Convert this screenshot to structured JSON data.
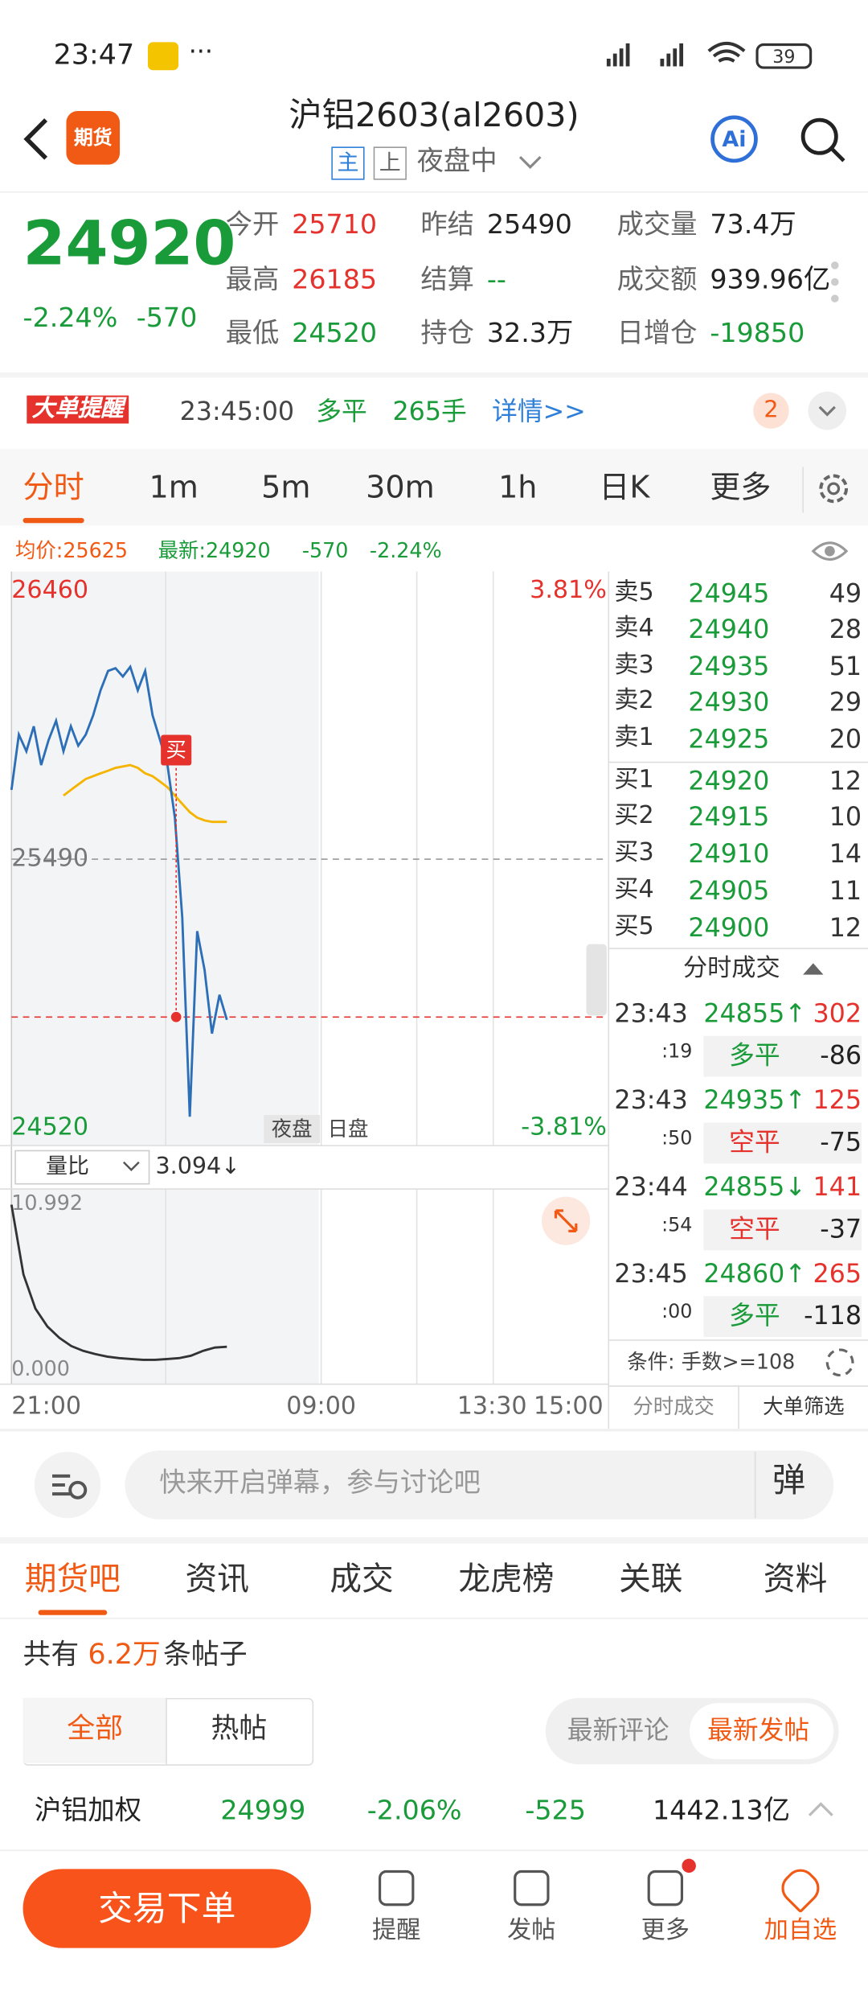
{
  "status_bar": {
    "time": "23:47",
    "battery": "39"
  },
  "header": {
    "logo": "期货",
    "title": "沪铝2603(al2603)",
    "tags": [
      "主",
      "上"
    ],
    "session": "夜盘中"
  },
  "quote": {
    "price": 24920,
    "change_pct": "-2.24%",
    "change": "-570",
    "fields": [
      {
        "label": "今开",
        "value": "25710"
      },
      {
        "label": "昨结",
        "value": "25490"
      },
      {
        "label": "成交量",
        "value": "73.4万"
      },
      {
        "label": "最高",
        "value": "26185"
      },
      {
        "label": "结算",
        "value": "--"
      },
      {
        "label": "成交额",
        "value": "939.96亿"
      },
      {
        "label": "最低",
        "value": "24520"
      },
      {
        "label": "持仓",
        "value": "32.3万"
      },
      {
        "label": "日增仓",
        "value": "-19850"
      }
    ]
  },
  "alert": {
    "badge": "大单提醒",
    "time": "23:45:00",
    "action": "多平",
    "qty": "265手",
    "link": "详情>>",
    "count": "2"
  },
  "tabs": [
    "分时",
    "1m",
    "5m",
    "30m",
    "1h",
    "日K",
    "更多"
  ],
  "info_line": {
    "avg": "均价:25625",
    "latest": "最新:24920",
    "change": "-570",
    "change_pct": "-2.24%"
  },
  "chart": {
    "ylim": [
      24520,
      26460
    ],
    "yticks": [
      24520,
      25490,
      26460
    ],
    "pct_labels": [
      "3.81%",
      "-3.81%"
    ],
    "price_line": [
      25740,
      25940,
      25880,
      25970,
      25830,
      25920,
      25990,
      25880,
      25970,
      25900,
      25940,
      26010,
      26100,
      26170,
      26180,
      26150,
      26185,
      26100,
      26170,
      26010,
      25920,
      25830,
      25640,
      25280,
      24560,
      25230,
      25090,
      24860,
      25000,
      24910
    ],
    "avg_line": [
      null,
      null,
      null,
      null,
      null,
      null,
      null,
      25720,
      25740,
      25760,
      25780,
      25790,
      25800,
      25810,
      25820,
      25825,
      25830,
      25820,
      25800,
      25790,
      25770,
      25750,
      25720,
      25690,
      25660,
      25640,
      25630,
      25625,
      25625,
      25625
    ],
    "marker": "买",
    "session_buttons": [
      "夜盘",
      "日盘"
    ],
    "indicator": "量比",
    "indicator_value": "3.094↓",
    "vol_ylim": [
      0,
      10.992
    ],
    "vol_labels": [
      "10.992",
      "0.000"
    ],
    "vol_line": [
      10.5,
      6.2,
      4.1,
      3.0,
      2.3,
      1.8,
      1.5,
      1.3,
      1.15,
      1.05,
      1.0,
      0.95,
      0.95,
      1.0,
      1.05,
      1.2,
      1.5,
      1.7,
      1.75
    ],
    "x_labels": [
      "21:00",
      "09:00",
      "13:30",
      "15:00"
    ]
  },
  "order_book": {
    "asks": [
      {
        "label": "卖5",
        "price": "24945",
        "vol": "49"
      },
      {
        "label": "卖4",
        "price": "24940",
        "vol": "28"
      },
      {
        "label": "卖3",
        "price": "24935",
        "vol": "51"
      },
      {
        "label": "卖2",
        "price": "24930",
        "vol": "29"
      },
      {
        "label": "卖1",
        "price": "24925",
        "vol": "20"
      }
    ],
    "bids": [
      {
        "label": "买1",
        "price": "24920",
        "vol": "12"
      },
      {
        "label": "买2",
        "price": "24915",
        "vol": "10"
      },
      {
        "label": "买3",
        "price": "24910",
        "vol": "14"
      },
      {
        "label": "买4",
        "price": "24905",
        "vol": "11"
      },
      {
        "label": "买5",
        "price": "24900",
        "vol": "12"
      }
    ]
  },
  "trades": {
    "title": "分时成交",
    "rows": [
      {
        "time": "23:43",
        "sec": ":19",
        "price": "24855↑",
        "vol": "302",
        "type": "多平",
        "oi": "-86"
      },
      {
        "time": "23:43",
        "sec": ":50",
        "price": "24935↑",
        "vol": "125",
        "type": "空平",
        "oi": "-75"
      },
      {
        "time": "23:44",
        "sec": ":54",
        "price": "24855↓",
        "vol": "141",
        "type": "空平",
        "oi": "-37"
      },
      {
        "time": "23:45",
        "sec": ":00",
        "price": "24860↑",
        "vol": "265",
        "type": "多平",
        "oi": "-118"
      }
    ],
    "filter": "条件: 手数>=108",
    "buttons": [
      "分时成交",
      "大单筛选"
    ]
  },
  "comment_bar": {
    "placeholder": "快来开启弹幕，参与讨论吧",
    "button": "弹"
  },
  "section_tabs": [
    "期货吧",
    "资讯",
    "成交",
    "龙虎榜",
    "关联",
    "资料"
  ],
  "posts": {
    "prefix": "共有",
    "count": "6.2万",
    "suffix": "条帖子",
    "filters": [
      "全部",
      "热帖"
    ],
    "sorts": [
      "最新评论",
      "最新发帖"
    ]
  },
  "ticker": {
    "name": "沪铝加权",
    "price": "24999",
    "change_pct": "-2.06%",
    "change": "-525",
    "amount": "1442.13亿"
  },
  "bottom_nav": {
    "trade": "交易下单",
    "items": [
      "提醒",
      "发帖",
      "更多",
      "加自选"
    ]
  }
}
